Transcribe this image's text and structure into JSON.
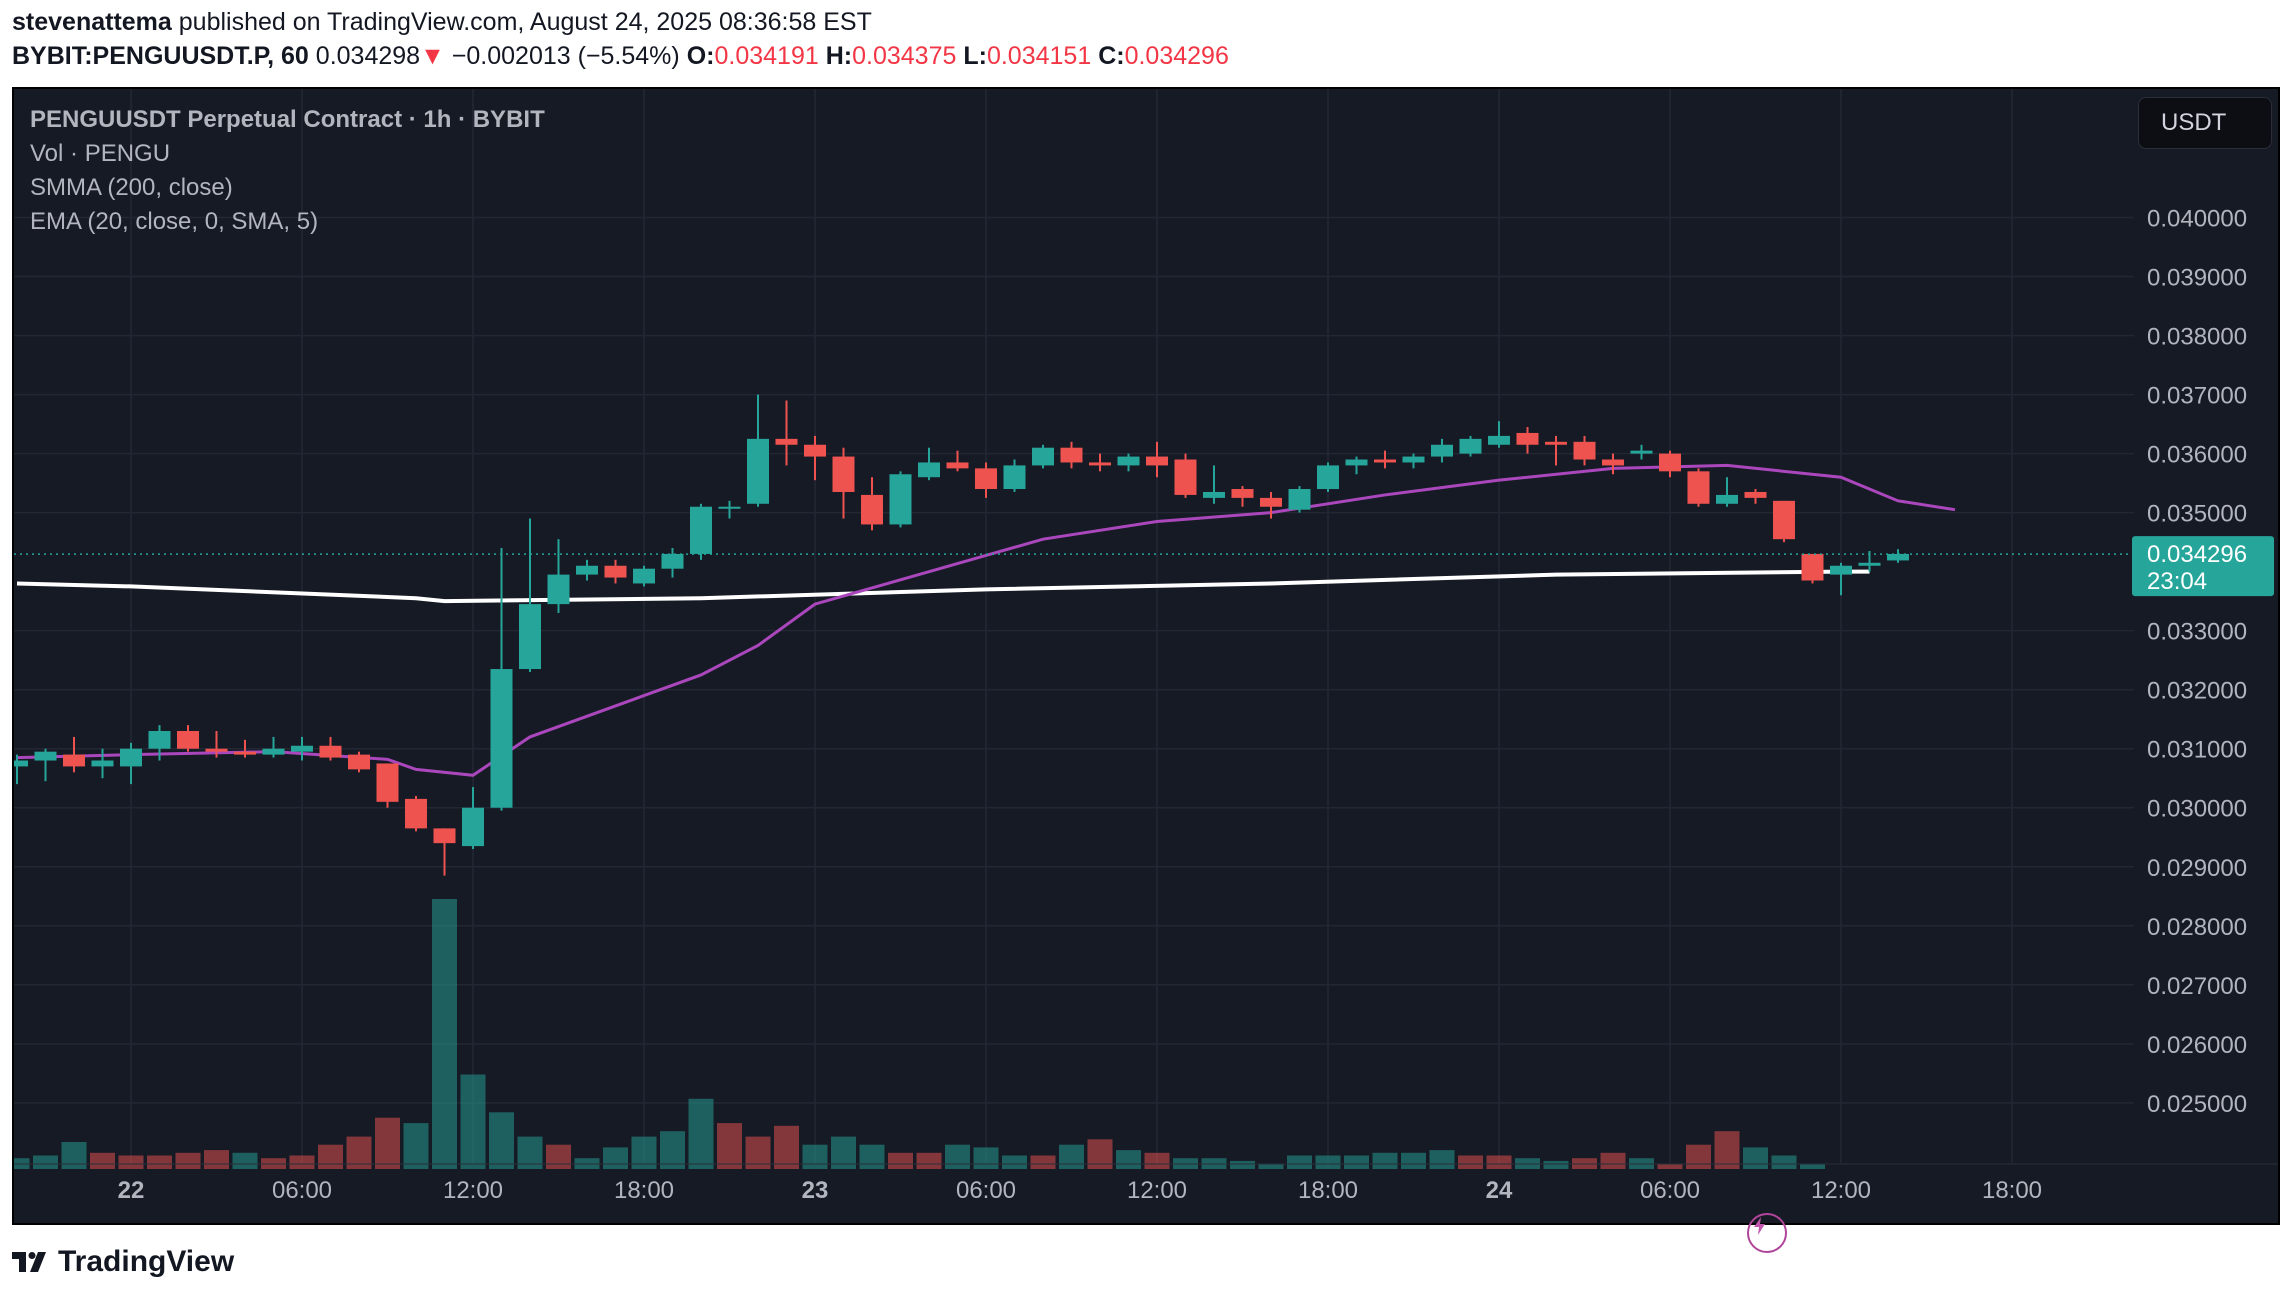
{
  "header": {
    "author": "stevenattema",
    "published_text": "published on TradingView.com, August 24, 2025 08:36:58 EST",
    "symbol": "BYBIT:PENGUUSDT.P, 60",
    "last_price": "0.034298",
    "arrow": "▼",
    "change": "−0.002013 (−5.54%)",
    "o_label": "O:",
    "o_value": "0.034191",
    "h_label": "H:",
    "h_value": "0.034375",
    "l_label": "L:",
    "l_value": "0.034151",
    "c_label": "C:",
    "c_value": "0.034296"
  },
  "legend": {
    "title": "PENGUUSDT Perpetual Contract · 1h · BYBIT",
    "vol": "Vol · PENGU",
    "smma": "SMMA (200, close)",
    "ema": "EMA (20, close, 0, SMA, 5)"
  },
  "currency_button": "USDT",
  "footer": {
    "brand": "TradingView"
  },
  "colors": {
    "background": "#161a25",
    "up": "#26a69a",
    "down": "#ef5350",
    "ema": "#ab47bc",
    "smma": "#ffffff",
    "price_label": "#26a69a"
  },
  "chart_data": {
    "type": "candlestick",
    "interval": "1h",
    "ylim": [
      0.02415,
      0.0415
    ],
    "y_ticks": [
      "0.040000",
      "0.039000",
      "0.038000",
      "0.037000",
      "0.036000",
      "0.035000",
      "0.033000",
      "0.032000",
      "0.031000",
      "0.030000",
      "0.029000",
      "0.028000",
      "0.027000",
      "0.026000",
      "0.025000"
    ],
    "x_tick_labels": [
      {
        "hour": 0,
        "label": "22",
        "bold": true
      },
      {
        "hour": 6,
        "label": "06:00",
        "bold": false
      },
      {
        "hour": 12,
        "label": "12:00",
        "bold": false
      },
      {
        "hour": 18,
        "label": "18:00",
        "bold": false
      },
      {
        "hour": 24,
        "label": "23",
        "bold": true
      },
      {
        "hour": 30,
        "label": "06:00",
        "bold": false
      },
      {
        "hour": 36,
        "label": "12:00",
        "bold": false
      },
      {
        "hour": 42,
        "label": "18:00",
        "bold": false
      },
      {
        "hour": 48,
        "label": "24",
        "bold": true
      },
      {
        "hour": 54,
        "label": "06:00",
        "bold": false
      },
      {
        "hour": 60,
        "label": "12:00",
        "bold": false
      },
      {
        "hour": 66,
        "label": "18:00",
        "bold": false
      }
    ],
    "current_price_label": "0.034296",
    "countdown_label": "23:04",
    "current_price": 0.034296,
    "candles": [
      {
        "t": -4,
        "o": 0.0307,
        "h": 0.0309,
        "l": 0.0304,
        "c": 0.0308
      },
      {
        "t": -3,
        "o": 0.0308,
        "h": 0.031,
        "l": 0.03045,
        "c": 0.03095
      },
      {
        "t": -2,
        "o": 0.0309,
        "h": 0.0312,
        "l": 0.0306,
        "c": 0.0307
      },
      {
        "t": -1,
        "o": 0.0307,
        "h": 0.031,
        "l": 0.0305,
        "c": 0.0308
      },
      {
        "t": 0,
        "o": 0.0307,
        "h": 0.0311,
        "l": 0.0304,
        "c": 0.031
      },
      {
        "t": 1,
        "o": 0.031,
        "h": 0.0314,
        "l": 0.0308,
        "c": 0.0313
      },
      {
        "t": 2,
        "o": 0.0313,
        "h": 0.0314,
        "l": 0.03095,
        "c": 0.031
      },
      {
        "t": 3,
        "o": 0.031,
        "h": 0.0313,
        "l": 0.03085,
        "c": 0.03095
      },
      {
        "t": 4,
        "o": 0.03095,
        "h": 0.03115,
        "l": 0.03085,
        "c": 0.0309
      },
      {
        "t": 5,
        "o": 0.0309,
        "h": 0.0312,
        "l": 0.03085,
        "c": 0.031
      },
      {
        "t": 6,
        "o": 0.03095,
        "h": 0.0312,
        "l": 0.0308,
        "c": 0.03105
      },
      {
        "t": 7,
        "o": 0.03105,
        "h": 0.0312,
        "l": 0.0308,
        "c": 0.03085
      },
      {
        "t": 8,
        "o": 0.0309,
        "h": 0.03095,
        "l": 0.0306,
        "c": 0.03065
      },
      {
        "t": 9,
        "o": 0.03075,
        "h": 0.03075,
        "l": 0.03,
        "c": 0.0301
      },
      {
        "t": 10,
        "o": 0.03015,
        "h": 0.0302,
        "l": 0.0296,
        "c": 0.02965
      },
      {
        "t": 11,
        "o": 0.02965,
        "h": 0.02965,
        "l": 0.02885,
        "c": 0.0294
      },
      {
        "t": 12,
        "o": 0.02935,
        "h": 0.03035,
        "l": 0.0293,
        "c": 0.03
      },
      {
        "t": 13,
        "o": 0.03,
        "h": 0.0344,
        "l": 0.02995,
        "c": 0.03235
      },
      {
        "t": 14,
        "o": 0.03235,
        "h": 0.0349,
        "l": 0.0323,
        "c": 0.03345
      },
      {
        "t": 15,
        "o": 0.03345,
        "h": 0.03455,
        "l": 0.0333,
        "c": 0.03395
      },
      {
        "t": 16,
        "o": 0.03395,
        "h": 0.0342,
        "l": 0.03385,
        "c": 0.0341
      },
      {
        "t": 17,
        "o": 0.0341,
        "h": 0.0342,
        "l": 0.0338,
        "c": 0.0339
      },
      {
        "t": 18,
        "o": 0.0338,
        "h": 0.0341,
        "l": 0.03375,
        "c": 0.03405
      },
      {
        "t": 19,
        "o": 0.03405,
        "h": 0.0344,
        "l": 0.0339,
        "c": 0.0343
      },
      {
        "t": 20,
        "o": 0.0343,
        "h": 0.03515,
        "l": 0.0342,
        "c": 0.0351
      },
      {
        "t": 21,
        "o": 0.0351,
        "h": 0.0352,
        "l": 0.0349,
        "c": 0.0351
      },
      {
        "t": 22,
        "o": 0.03515,
        "h": 0.037,
        "l": 0.0351,
        "c": 0.03625
      },
      {
        "t": 23,
        "o": 0.03625,
        "h": 0.0369,
        "l": 0.0358,
        "c": 0.03615
      },
      {
        "t": 24,
        "o": 0.03615,
        "h": 0.0363,
        "l": 0.03555,
        "c": 0.03595
      },
      {
        "t": 25,
        "o": 0.03595,
        "h": 0.0361,
        "l": 0.0349,
        "c": 0.03535
      },
      {
        "t": 26,
        "o": 0.0353,
        "h": 0.0356,
        "l": 0.0347,
        "c": 0.0348
      },
      {
        "t": 27,
        "o": 0.0348,
        "h": 0.0357,
        "l": 0.03475,
        "c": 0.03565
      },
      {
        "t": 28,
        "o": 0.0356,
        "h": 0.0361,
        "l": 0.03555,
        "c": 0.03585
      },
      {
        "t": 29,
        "o": 0.03585,
        "h": 0.03605,
        "l": 0.0357,
        "c": 0.03575
      },
      {
        "t": 30,
        "o": 0.03575,
        "h": 0.03585,
        "l": 0.03525,
        "c": 0.0354
      },
      {
        "t": 31,
        "o": 0.0354,
        "h": 0.0359,
        "l": 0.03535,
        "c": 0.0358
      },
      {
        "t": 32,
        "o": 0.0358,
        "h": 0.03615,
        "l": 0.03575,
        "c": 0.0361
      },
      {
        "t": 33,
        "o": 0.0361,
        "h": 0.0362,
        "l": 0.03575,
        "c": 0.03585
      },
      {
        "t": 34,
        "o": 0.03585,
        "h": 0.036,
        "l": 0.0357,
        "c": 0.0358
      },
      {
        "t": 35,
        "o": 0.0358,
        "h": 0.036,
        "l": 0.0357,
        "c": 0.03595
      },
      {
        "t": 36,
        "o": 0.03595,
        "h": 0.0362,
        "l": 0.0356,
        "c": 0.0358
      },
      {
        "t": 37,
        "o": 0.0359,
        "h": 0.036,
        "l": 0.03525,
        "c": 0.0353
      },
      {
        "t": 38,
        "o": 0.03525,
        "h": 0.0358,
        "l": 0.03515,
        "c": 0.03535
      },
      {
        "t": 39,
        "o": 0.0354,
        "h": 0.03545,
        "l": 0.0351,
        "c": 0.03525
      },
      {
        "t": 40,
        "o": 0.03525,
        "h": 0.03535,
        "l": 0.0349,
        "c": 0.0351
      },
      {
        "t": 41,
        "o": 0.03505,
        "h": 0.03545,
        "l": 0.035,
        "c": 0.0354
      },
      {
        "t": 42,
        "o": 0.0354,
        "h": 0.03585,
        "l": 0.03535,
        "c": 0.0358
      },
      {
        "t": 43,
        "o": 0.0358,
        "h": 0.03595,
        "l": 0.03565,
        "c": 0.0359
      },
      {
        "t": 44,
        "o": 0.0359,
        "h": 0.03605,
        "l": 0.03575,
        "c": 0.03585
      },
      {
        "t": 45,
        "o": 0.03585,
        "h": 0.036,
        "l": 0.03575,
        "c": 0.03595
      },
      {
        "t": 46,
        "o": 0.03595,
        "h": 0.03625,
        "l": 0.03585,
        "c": 0.03615
      },
      {
        "t": 47,
        "o": 0.036,
        "h": 0.0363,
        "l": 0.03595,
        "c": 0.03625
      },
      {
        "t": 48,
        "o": 0.03615,
        "h": 0.03655,
        "l": 0.0361,
        "c": 0.0363
      },
      {
        "t": 49,
        "o": 0.03635,
        "h": 0.03645,
        "l": 0.036,
        "c": 0.03615
      },
      {
        "t": 50,
        "o": 0.0362,
        "h": 0.0363,
        "l": 0.0358,
        "c": 0.03615
      },
      {
        "t": 51,
        "o": 0.0362,
        "h": 0.0363,
        "l": 0.0358,
        "c": 0.0359
      },
      {
        "t": 52,
        "o": 0.0359,
        "h": 0.036,
        "l": 0.03565,
        "c": 0.0358
      },
      {
        "t": 53,
        "o": 0.036,
        "h": 0.03615,
        "l": 0.0359,
        "c": 0.03605
      },
      {
        "t": 54,
        "o": 0.036,
        "h": 0.03605,
        "l": 0.0356,
        "c": 0.0357
      },
      {
        "t": 55,
        "o": 0.0357,
        "h": 0.03575,
        "l": 0.0351,
        "c": 0.03515
      },
      {
        "t": 56,
        "o": 0.03515,
        "h": 0.0356,
        "l": 0.0351,
        "c": 0.0353
      },
      {
        "t": 57,
        "o": 0.03535,
        "h": 0.0354,
        "l": 0.03515,
        "c": 0.03525
      },
      {
        "t": 58,
        "o": 0.0352,
        "h": 0.0352,
        "l": 0.0345,
        "c": 0.03455
      },
      {
        "t": 59,
        "o": 0.0343,
        "h": 0.0343,
        "l": 0.0338,
        "c": 0.03385
      },
      {
        "t": 60,
        "o": 0.03395,
        "h": 0.03415,
        "l": 0.0336,
        "c": 0.0341
      },
      {
        "t": 61,
        "o": 0.0341,
        "h": 0.03435,
        "l": 0.034,
        "c": 0.03415
      },
      {
        "t": 62,
        "o": 0.03419,
        "h": 0.03438,
        "l": 0.03415,
        "c": 0.0343
      }
    ],
    "volumes": [
      {
        "t": -4,
        "v": 0.04,
        "up": true
      },
      {
        "t": -3,
        "v": 0.05,
        "up": true
      },
      {
        "t": -2,
        "v": 0.1,
        "up": true
      },
      {
        "t": -1,
        "v": 0.06,
        "up": false
      },
      {
        "t": 0,
        "v": 0.05,
        "up": false
      },
      {
        "t": 1,
        "v": 0.05,
        "up": false
      },
      {
        "t": 2,
        "v": 0.06,
        "up": false
      },
      {
        "t": 3,
        "v": 0.07,
        "up": false
      },
      {
        "t": 4,
        "v": 0.06,
        "up": true
      },
      {
        "t": 5,
        "v": 0.04,
        "up": false
      },
      {
        "t": 6,
        "v": 0.05,
        "up": false
      },
      {
        "t": 7,
        "v": 0.09,
        "up": false
      },
      {
        "t": 8,
        "v": 0.12,
        "up": false
      },
      {
        "t": 9,
        "v": 0.19,
        "up": false
      },
      {
        "t": 10,
        "v": 0.17,
        "up": true
      },
      {
        "t": 11,
        "v": 1.0,
        "up": true
      },
      {
        "t": 12,
        "v": 0.35,
        "up": true
      },
      {
        "t": 13,
        "v": 0.21,
        "up": true
      },
      {
        "t": 14,
        "v": 0.12,
        "up": true
      },
      {
        "t": 15,
        "v": 0.09,
        "up": false
      },
      {
        "t": 16,
        "v": 0.04,
        "up": true
      },
      {
        "t": 17,
        "v": 0.08,
        "up": true
      },
      {
        "t": 18,
        "v": 0.12,
        "up": true
      },
      {
        "t": 19,
        "v": 0.14,
        "up": true
      },
      {
        "t": 20,
        "v": 0.26,
        "up": true
      },
      {
        "t": 21,
        "v": 0.17,
        "up": false
      },
      {
        "t": 22,
        "v": 0.12,
        "up": false
      },
      {
        "t": 23,
        "v": 0.16,
        "up": false
      },
      {
        "t": 24,
        "v": 0.09,
        "up": true
      },
      {
        "t": 25,
        "v": 0.12,
        "up": true
      },
      {
        "t": 26,
        "v": 0.09,
        "up": true
      },
      {
        "t": 27,
        "v": 0.06,
        "up": false
      },
      {
        "t": 28,
        "v": 0.06,
        "up": false
      },
      {
        "t": 29,
        "v": 0.09,
        "up": true
      },
      {
        "t": 30,
        "v": 0.08,
        "up": true
      },
      {
        "t": 31,
        "v": 0.05,
        "up": true
      },
      {
        "t": 32,
        "v": 0.05,
        "up": false
      },
      {
        "t": 33,
        "v": 0.09,
        "up": true
      },
      {
        "t": 34,
        "v": 0.11,
        "up": false
      },
      {
        "t": 35,
        "v": 0.07,
        "up": true
      },
      {
        "t": 36,
        "v": 0.06,
        "up": false
      },
      {
        "t": 37,
        "v": 0.04,
        "up": true
      },
      {
        "t": 38,
        "v": 0.04,
        "up": true
      },
      {
        "t": 39,
        "v": 0.03,
        "up": true
      },
      {
        "t": 40,
        "v": 0.02,
        "up": true
      },
      {
        "t": 41,
        "v": 0.05,
        "up": true
      },
      {
        "t": 42,
        "v": 0.05,
        "up": true
      },
      {
        "t": 43,
        "v": 0.05,
        "up": true
      },
      {
        "t": 44,
        "v": 0.06,
        "up": true
      },
      {
        "t": 45,
        "v": 0.06,
        "up": true
      },
      {
        "t": 46,
        "v": 0.07,
        "up": true
      },
      {
        "t": 47,
        "v": 0.05,
        "up": false
      },
      {
        "t": 48,
        "v": 0.05,
        "up": false
      },
      {
        "t": 49,
        "v": 0.04,
        "up": true
      },
      {
        "t": 50,
        "v": 0.03,
        "up": true
      },
      {
        "t": 51,
        "v": 0.04,
        "up": false
      },
      {
        "t": 52,
        "v": 0.06,
        "up": false
      },
      {
        "t": 53,
        "v": 0.04,
        "up": true
      },
      {
        "t": 54,
        "v": 0.02,
        "up": false
      },
      {
        "t": 55,
        "v": 0.09,
        "up": false
      },
      {
        "t": 56,
        "v": 0.14,
        "up": false
      },
      {
        "t": 57,
        "v": 0.08,
        "up": true
      },
      {
        "t": 58,
        "v": 0.05,
        "up": true
      },
      {
        "t": 59,
        "v": 0.02,
        "up": true
      }
    ],
    "smma": [
      [
        -4,
        0.0338
      ],
      [
        0,
        0.03375
      ],
      [
        10,
        0.03355
      ],
      [
        11,
        0.0335
      ],
      [
        20,
        0.03355
      ],
      [
        30,
        0.0337
      ],
      [
        40,
        0.0338
      ],
      [
        50,
        0.03395
      ],
      [
        60,
        0.034
      ],
      [
        61,
        0.034
      ]
    ],
    "ema": [
      [
        -4,
        0.03085
      ],
      [
        0,
        0.0309
      ],
      [
        5,
        0.03095
      ],
      [
        9,
        0.03082
      ],
      [
        10,
        0.03065
      ],
      [
        12,
        0.03055
      ],
      [
        14,
        0.0312
      ],
      [
        18,
        0.0319
      ],
      [
        20,
        0.03225
      ],
      [
        22,
        0.03275
      ],
      [
        24,
        0.03345
      ],
      [
        28,
        0.034
      ],
      [
        32,
        0.03455
      ],
      [
        36,
        0.03485
      ],
      [
        40,
        0.035
      ],
      [
        44,
        0.0353
      ],
      [
        48,
        0.03555
      ],
      [
        52,
        0.03575
      ],
      [
        56,
        0.0358
      ],
      [
        60,
        0.0356
      ],
      [
        62,
        0.0352
      ],
      [
        64,
        0.03505
      ]
    ]
  }
}
